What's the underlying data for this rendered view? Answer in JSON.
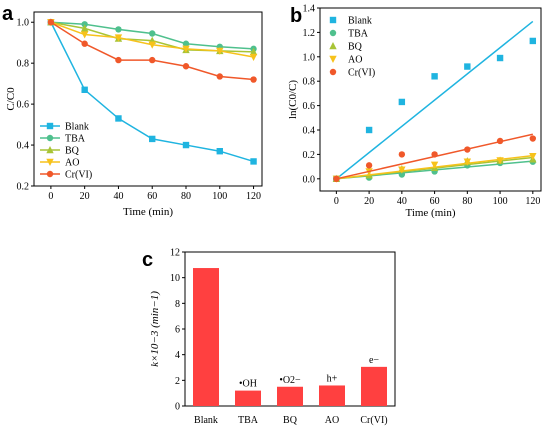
{
  "chart_data": [
    {
      "panel": "a",
      "type": "line",
      "xlabel": "Time (min)",
      "ylabel": "C/C0",
      "xlim": [
        -10,
        125
      ],
      "ylim": [
        0.2,
        1.05
      ],
      "x": [
        0,
        20,
        40,
        60,
        80,
        100,
        120
      ],
      "xticks": [
        "0",
        "20",
        "40",
        "60",
        "80",
        "100",
        "120"
      ],
      "yticks": [
        "0.2",
        "0.4",
        "0.6",
        "0.8",
        "1.0"
      ],
      "legend_position": "bottom-left",
      "series": [
        {
          "name": "Blank",
          "color": "#1fb4e0",
          "marker": "square",
          "values": [
            1.0,
            0.67,
            0.53,
            0.43,
            0.4,
            0.37,
            0.32
          ]
        },
        {
          "name": "TBA",
          "color": "#4fc08d",
          "marker": "circle",
          "values": [
            1.0,
            0.99,
            0.965,
            0.945,
            0.895,
            0.88,
            0.87
          ]
        },
        {
          "name": "BQ",
          "color": "#a8c436",
          "marker": "triangle-up",
          "values": [
            1.0,
            0.97,
            0.92,
            0.91,
            0.865,
            0.86,
            0.855
          ]
        },
        {
          "name": "AO",
          "color": "#f7c21b",
          "marker": "triangle-down",
          "values": [
            1.0,
            0.94,
            0.925,
            0.89,
            0.87,
            0.86,
            0.83
          ]
        },
        {
          "name": "Cr(VI)",
          "color": "#f0582a",
          "marker": "circle",
          "values": [
            1.0,
            0.895,
            0.815,
            0.815,
            0.785,
            0.735,
            0.72
          ]
        }
      ]
    },
    {
      "panel": "b",
      "type": "scatter",
      "xlabel": "Time (min)",
      "ylabel": "ln(C0/C)",
      "xlim": [
        -10,
        125
      ],
      "ylim": [
        -0.1,
        1.4
      ],
      "x": [
        0,
        20,
        40,
        60,
        80,
        100,
        120
      ],
      "xticks": [
        "0",
        "20",
        "40",
        "60",
        "80",
        "100",
        "120"
      ],
      "yticks": [
        "0.0",
        "0.2",
        "0.4",
        "0.6",
        "0.8",
        "1.0",
        "1.2",
        "1.4"
      ],
      "legend_position": "top-left",
      "series": [
        {
          "name": "Blank",
          "color": "#1fb4e0",
          "marker": "square",
          "values": [
            0.0,
            0.4,
            0.63,
            0.84,
            0.92,
            0.99,
            1.13
          ],
          "fit": [
            0,
            1.29
          ]
        },
        {
          "name": "TBA",
          "color": "#4fc08d",
          "marker": "circle",
          "values": [
            0.0,
            0.01,
            0.035,
            0.06,
            0.11,
            0.13,
            0.14
          ],
          "fit": [
            0,
            0.145
          ]
        },
        {
          "name": "BQ",
          "color": "#a8c436",
          "marker": "triangle-up",
          "values": [
            0.0,
            0.03,
            0.08,
            0.09,
            0.145,
            0.15,
            0.16
          ],
          "fit": [
            0,
            0.175
          ]
        },
        {
          "name": "AO",
          "color": "#f7c21b",
          "marker": "triangle-down",
          "values": [
            0.0,
            0.06,
            0.075,
            0.115,
            0.14,
            0.15,
            0.185
          ],
          "fit": [
            0,
            0.19
          ]
        },
        {
          "name": "Cr(VI)",
          "color": "#f0582a",
          "marker": "circle",
          "values": [
            0.0,
            0.11,
            0.2,
            0.2,
            0.24,
            0.31,
            0.33
          ],
          "fit": [
            0,
            0.365
          ]
        }
      ]
    },
    {
      "panel": "c",
      "type": "bar",
      "ylabel": "k×10−3 (min−1)",
      "ylim": [
        0,
        12
      ],
      "yticks": [
        "0",
        "2",
        "4",
        "6",
        "8",
        "10",
        "12"
      ],
      "categories": [
        "Blank",
        "TBA",
        "BQ",
        "AO",
        "Cr(VI)"
      ],
      "values": [
        10.75,
        1.2,
        1.5,
        1.6,
        3.05
      ],
      "annotations": [
        "",
        "•OH",
        "•O2−",
        "h+",
        "e−"
      ],
      "color": "#ff4040"
    }
  ]
}
